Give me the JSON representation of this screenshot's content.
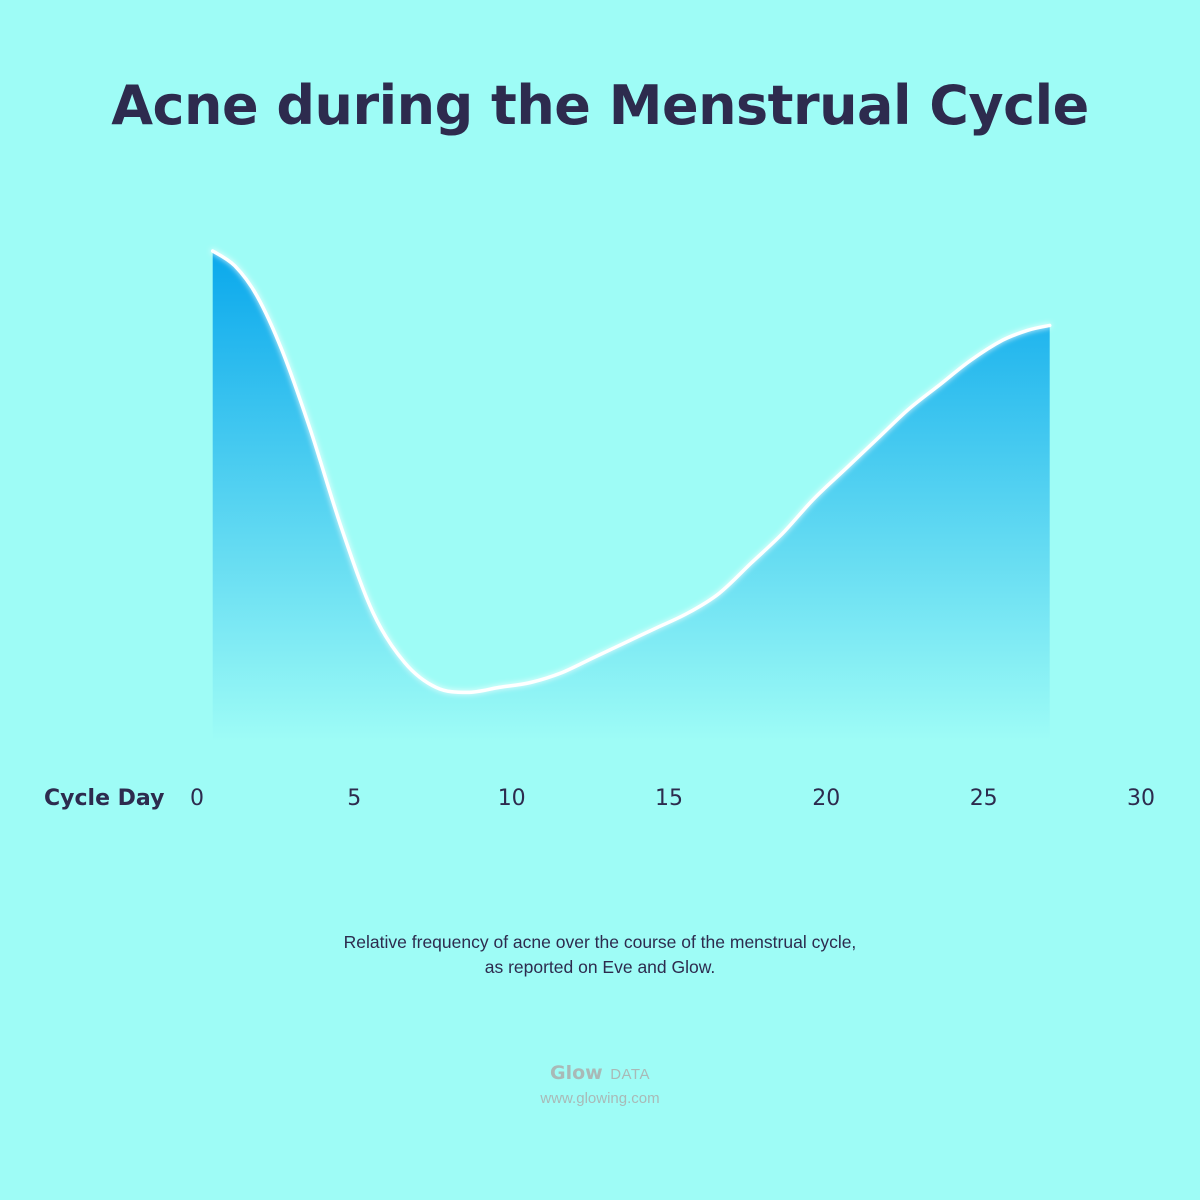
{
  "chart_data": {
    "type": "area",
    "title": "Acne during the Menstrual Cycle",
    "xlabel": "Cycle Day",
    "ylabel": "",
    "xlim": [
      0,
      30
    ],
    "ylim": [
      0,
      1
    ],
    "x_ticks": [
      "0",
      "5",
      "10",
      "15",
      "20",
      "25",
      "30"
    ],
    "y_axis_visible": false,
    "grid": false,
    "series": [
      {
        "x": [
          0.5,
          1.2,
          1.9,
          2.7,
          3.6,
          4.6,
          5.6,
          6.6,
          7.6,
          8.6,
          9.6,
          10.6,
          11.6,
          12.6,
          13.6,
          14.6,
          15.6,
          16.6,
          17.6,
          18.6,
          19.6,
          20.6,
          21.6,
          22.6,
          23.6,
          24.6,
          25.6,
          26.4,
          27.1
        ],
        "y": [
          0.99,
          0.96,
          0.9,
          0.79,
          0.63,
          0.43,
          0.26,
          0.16,
          0.11,
          0.1,
          0.11,
          0.12,
          0.14,
          0.17,
          0.2,
          0.23,
          0.26,
          0.3,
          0.36,
          0.42,
          0.49,
          0.55,
          0.61,
          0.67,
          0.72,
          0.77,
          0.81,
          0.83,
          0.84
        ]
      }
    ],
    "colors": {
      "background": "#9efcf6",
      "fill_top": "#0aa8ec",
      "fill_bottom": "#9efcf6",
      "line": "#ffffff",
      "text": "#2d2b4e"
    }
  },
  "caption": {
    "line1": "Relative frequency of acne over the course of the menstrual cycle,",
    "line2": "as reported on Eve and Glow."
  },
  "brand": {
    "logo": "Glow",
    "tag": "DATA",
    "url": "www.glowing.com"
  }
}
